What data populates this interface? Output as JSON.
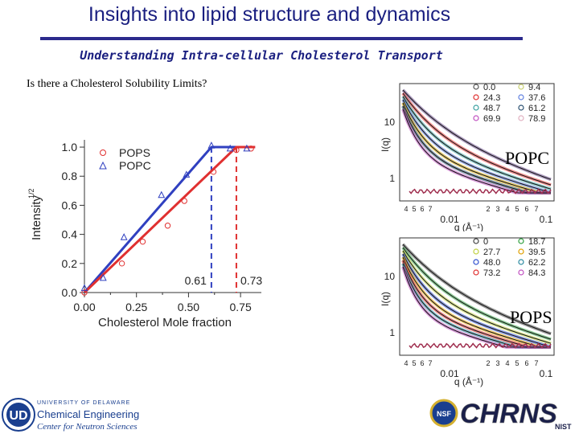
{
  "slide": {
    "title": "Insights into lipid structure and dynamics",
    "subtitle": "Understanding Intra-cellular Cholesterol Transport",
    "question": "Is there a Cholesterol Solubility Limits?",
    "popc_label": "POPC",
    "pops_label": "POPS",
    "accent_color": "#1a1f80"
  },
  "chart_data": [
    {
      "type": "scatter",
      "xlabel": "Cholesterol Mole fraction",
      "ylabel": "Intensity",
      "ylabel_sup": "1/2",
      "xlim": [
        0,
        0.85
      ],
      "ylim": [
        0,
        1.05
      ],
      "x_ticks": [
        "0.00",
        "0.25",
        "0.50",
        "0.75"
      ],
      "y_ticks": [
        "0.0",
        "0.2",
        "0.4",
        "0.6",
        "0.8",
        "1.0"
      ],
      "legend_placement": "top-right",
      "annotations": [
        "0.61",
        "0.73"
      ],
      "series": [
        {
          "name": "POPS",
          "color": "#e03030",
          "marker": "circle",
          "x": [
            0.0,
            0.18,
            0.28,
            0.4,
            0.48,
            0.62,
            0.73,
            0.8
          ],
          "y": [
            0.0,
            0.2,
            0.35,
            0.46,
            0.63,
            0.83,
            0.98,
            0.99
          ],
          "fit_x": [
            0.0,
            0.73,
            0.82
          ],
          "fit_y": [
            0.0,
            1.0,
            1.0
          ]
        },
        {
          "name": "POPC",
          "color": "#3040c0",
          "marker": "triangle",
          "x": [
            0.0,
            0.09,
            0.19,
            0.37,
            0.49,
            0.61,
            0.7,
            0.78
          ],
          "y": [
            0.03,
            0.1,
            0.38,
            0.67,
            0.81,
            1.01,
            0.99,
            0.99
          ],
          "fit_x": [
            0.0,
            0.61,
            0.82
          ],
          "fit_y": [
            0.0,
            1.0,
            1.0
          ]
        }
      ]
    },
    {
      "type": "line",
      "panel": "POPC",
      "xlabel": "q (Å⁻¹)",
      "ylabel": "I(q)",
      "x_ticks_major": [
        "0.01",
        "0.1"
      ],
      "y_ticks_major": [
        "10",
        "1"
      ],
      "legend": [
        "0.0",
        "24.3",
        "48.7",
        "69.9",
        "9.4",
        "37.6",
        "61.2",
        "78.9"
      ],
      "legend_colors": [
        "#555555",
        "#e03030",
        "#3aa0a0",
        "#c050c0",
        "#c8d070",
        "#6080e0",
        "#2a5070",
        "#e0b0c0"
      ]
    },
    {
      "type": "line",
      "panel": "POPS",
      "xlabel": "q (Å⁻¹)",
      "ylabel": "I(q)",
      "x_ticks_major": [
        "0.01",
        "0.1"
      ],
      "y_ticks_major": [
        "10",
        "1"
      ],
      "legend": [
        "0",
        "27.7",
        "48.0",
        "73.2",
        "18.7",
        "39.5",
        "62.2",
        "84.3"
      ],
      "legend_colors": [
        "#444444",
        "#c0d040",
        "#3050d0",
        "#e03030",
        "#30a040",
        "#e0a000",
        "#2a8aa0",
        "#c050c0"
      ]
    }
  ],
  "logos": {
    "university": "UNIVERSITY OF DELAWARE",
    "department": "Chemical Engineering",
    "center": "Center for Neutron Sciences",
    "chrns": "CHRNS",
    "nsf": "NSF",
    "nist": "NIST"
  }
}
